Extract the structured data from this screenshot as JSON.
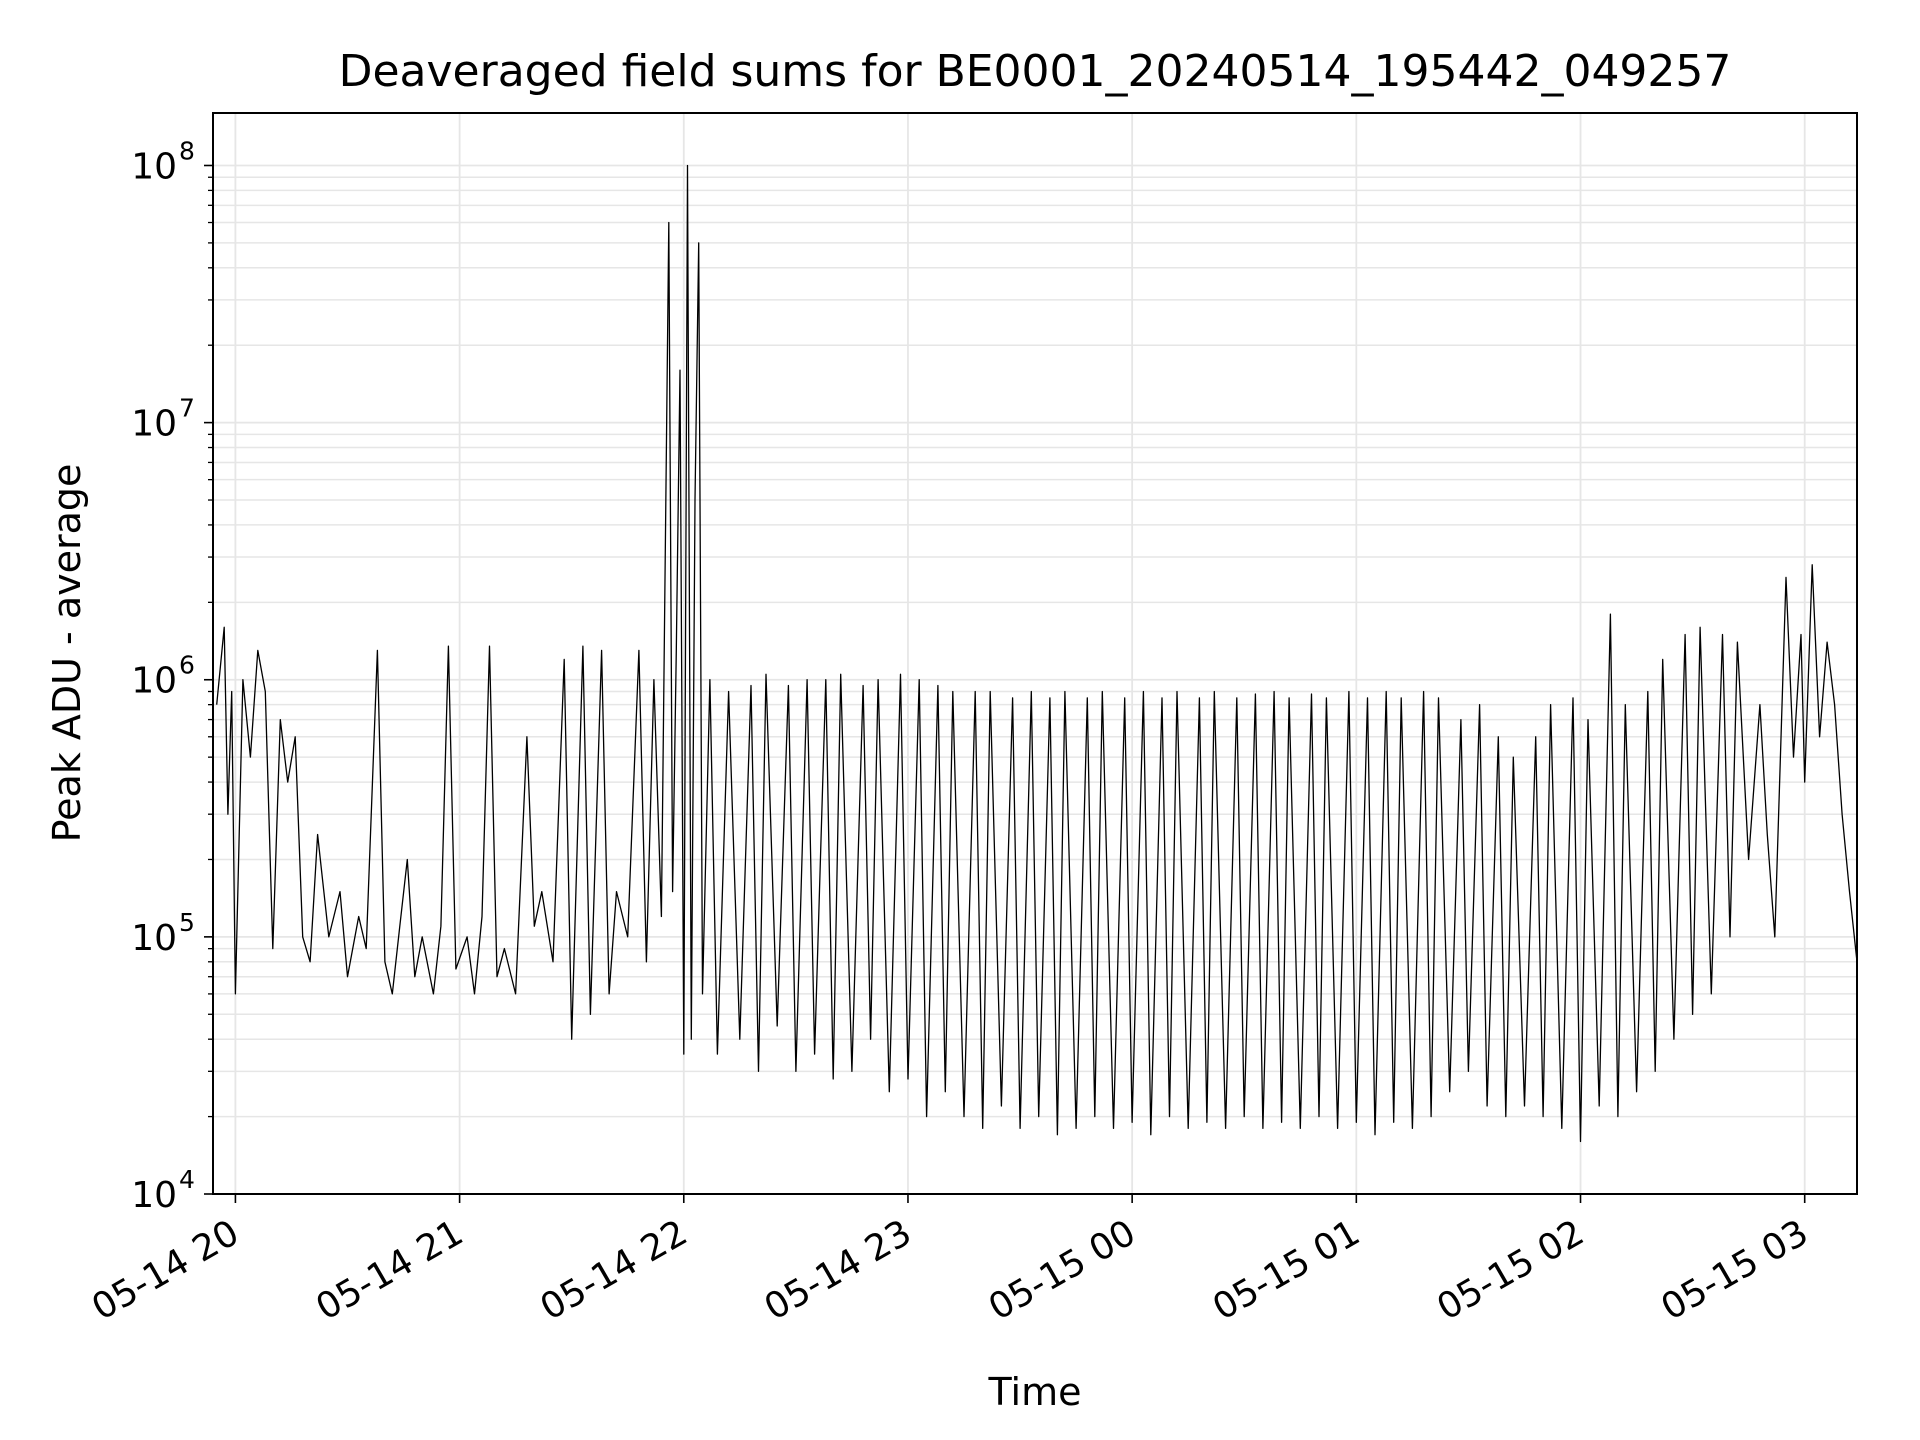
{
  "chart_data": {
    "type": "line",
    "title": "Deaveraged field sums for BE0001_20240514_195442_049257",
    "xlabel": "Time",
    "ylabel": "Peak ADU - average",
    "yscale": "log",
    "ylim": [
      10000,
      160000000
    ],
    "xlim": [
      "2024-05-14T19:54:00",
      "2024-05-15T03:14:00"
    ],
    "grid": true,
    "line_color": "#000000",
    "grid_color": "#e6e6e6",
    "x_ticks": [
      {
        "t": "2024-05-14T20:00:00",
        "label": "05-14 20"
      },
      {
        "t": "2024-05-14T21:00:00",
        "label": "05-14 21"
      },
      {
        "t": "2024-05-14T22:00:00",
        "label": "05-14 22"
      },
      {
        "t": "2024-05-14T23:00:00",
        "label": "05-14 23"
      },
      {
        "t": "2024-05-15T00:00:00",
        "label": "05-15 00"
      },
      {
        "t": "2024-05-15T01:00:00",
        "label": "05-15 01"
      },
      {
        "t": "2024-05-15T02:00:00",
        "label": "05-15 02"
      },
      {
        "t": "2024-05-15T03:00:00",
        "label": "05-15 03"
      }
    ],
    "y_ticks": [
      {
        "value": 10000,
        "base": "10",
        "exp": "4"
      },
      {
        "value": 100000,
        "base": "10",
        "exp": "5"
      },
      {
        "value": 1000000,
        "base": "10",
        "exp": "6"
      },
      {
        "value": 10000000,
        "base": "10",
        "exp": "7"
      },
      {
        "value": 100000000,
        "base": "10",
        "exp": "8"
      }
    ],
    "series": [
      {
        "x": [
          "2024-05-14T19:55:00",
          "2024-05-14T19:57:00",
          "2024-05-14T19:58:00",
          "2024-05-14T19:59:00",
          "2024-05-14T20:00:00",
          "2024-05-14T20:02:00",
          "2024-05-14T20:04:00",
          "2024-05-14T20:06:00",
          "2024-05-14T20:08:00",
          "2024-05-14T20:10:00",
          "2024-05-14T20:12:00",
          "2024-05-14T20:14:00",
          "2024-05-14T20:16:00",
          "2024-05-14T20:18:00",
          "2024-05-14T20:20:00",
          "2024-05-14T20:22:00",
          "2024-05-14T20:25:00",
          "2024-05-14T20:28:00",
          "2024-05-14T20:30:00",
          "2024-05-14T20:33:00",
          "2024-05-14T20:35:00",
          "2024-05-14T20:38:00",
          "2024-05-14T20:40:00",
          "2024-05-14T20:42:00",
          "2024-05-14T20:44:00",
          "2024-05-14T20:46:00",
          "2024-05-14T20:48:00",
          "2024-05-14T20:50:00",
          "2024-05-14T20:53:00",
          "2024-05-14T20:55:00",
          "2024-05-14T20:57:00",
          "2024-05-14T20:59:00",
          "2024-05-14T21:02:00",
          "2024-05-14T21:04:00",
          "2024-05-14T21:06:00",
          "2024-05-14T21:08:00",
          "2024-05-14T21:10:00",
          "2024-05-14T21:12:00",
          "2024-05-14T21:15:00",
          "2024-05-14T21:18:00",
          "2024-05-14T21:20:00",
          "2024-05-14T21:22:00",
          "2024-05-14T21:25:00",
          "2024-05-14T21:28:00",
          "2024-05-14T21:30:00",
          "2024-05-14T21:33:00",
          "2024-05-14T21:35:00",
          "2024-05-14T21:38:00",
          "2024-05-14T21:40:00",
          "2024-05-14T21:42:00",
          "2024-05-14T21:45:00",
          "2024-05-14T21:48:00",
          "2024-05-14T21:50:00",
          "2024-05-14T21:52:00",
          "2024-05-14T21:54:00",
          "2024-05-14T21:56:00",
          "2024-05-14T21:57:00",
          "2024-05-14T21:58:00",
          "2024-05-14T21:59:00",
          "2024-05-14T22:00:00",
          "2024-05-14T22:01:00",
          "2024-05-14T22:02:00",
          "2024-05-14T22:03:00",
          "2024-05-14T22:04:00",
          "2024-05-14T22:05:00",
          "2024-05-14T22:07:00",
          "2024-05-14T22:09:00",
          "2024-05-14T22:12:00",
          "2024-05-14T22:15:00",
          "2024-05-14T22:18:00",
          "2024-05-14T22:20:00",
          "2024-05-14T22:22:00",
          "2024-05-14T22:25:00",
          "2024-05-14T22:28:00",
          "2024-05-14T22:30:00",
          "2024-05-14T22:33:00",
          "2024-05-14T22:35:00",
          "2024-05-14T22:38:00",
          "2024-05-14T22:40:00",
          "2024-05-14T22:42:00",
          "2024-05-14T22:45:00",
          "2024-05-14T22:48:00",
          "2024-05-14T22:50:00",
          "2024-05-14T22:52:00",
          "2024-05-14T22:55:00",
          "2024-05-14T22:58:00",
          "2024-05-14T23:00:00",
          "2024-05-14T23:03:00",
          "2024-05-14T23:05:00",
          "2024-05-14T23:08:00",
          "2024-05-14T23:10:00",
          "2024-05-14T23:12:00",
          "2024-05-14T23:15:00",
          "2024-05-14T23:18:00",
          "2024-05-14T23:20:00",
          "2024-05-14T23:22:00",
          "2024-05-14T23:25:00",
          "2024-05-14T23:28:00",
          "2024-05-14T23:30:00",
          "2024-05-14T23:33:00",
          "2024-05-14T23:35:00",
          "2024-05-14T23:38:00",
          "2024-05-14T23:40:00",
          "2024-05-14T23:42:00",
          "2024-05-14T23:45:00",
          "2024-05-14T23:48:00",
          "2024-05-14T23:50:00",
          "2024-05-14T23:52:00",
          "2024-05-14T23:55:00",
          "2024-05-14T23:58:00",
          "2024-05-15T00:00:00",
          "2024-05-15T00:03:00",
          "2024-05-15T00:05:00",
          "2024-05-15T00:08:00",
          "2024-05-15T00:10:00",
          "2024-05-15T00:12:00",
          "2024-05-15T00:15:00",
          "2024-05-15T00:18:00",
          "2024-05-15T00:20:00",
          "2024-05-15T00:22:00",
          "2024-05-15T00:25:00",
          "2024-05-15T00:28:00",
          "2024-05-15T00:30:00",
          "2024-05-15T00:33:00",
          "2024-05-15T00:35:00",
          "2024-05-15T00:38:00",
          "2024-05-15T00:40:00",
          "2024-05-15T00:42:00",
          "2024-05-15T00:45:00",
          "2024-05-15T00:48:00",
          "2024-05-15T00:50:00",
          "2024-05-15T00:52:00",
          "2024-05-15T00:55:00",
          "2024-05-15T00:58:00",
          "2024-05-15T01:00:00",
          "2024-05-15T01:03:00",
          "2024-05-15T01:05:00",
          "2024-05-15T01:08:00",
          "2024-05-15T01:10:00",
          "2024-05-15T01:12:00",
          "2024-05-15T01:15:00",
          "2024-05-15T01:18:00",
          "2024-05-15T01:20:00",
          "2024-05-15T01:22:00",
          "2024-05-15T01:25:00",
          "2024-05-15T01:28:00",
          "2024-05-15T01:30:00",
          "2024-05-15T01:33:00",
          "2024-05-15T01:35:00",
          "2024-05-15T01:38:00",
          "2024-05-15T01:40:00",
          "2024-05-15T01:42:00",
          "2024-05-15T01:45:00",
          "2024-05-15T01:48:00",
          "2024-05-15T01:50:00",
          "2024-05-15T01:52:00",
          "2024-05-15T01:55:00",
          "2024-05-15T01:58:00",
          "2024-05-15T02:00:00",
          "2024-05-15T02:02:00",
          "2024-05-15T02:05:00",
          "2024-05-15T02:08:00",
          "2024-05-15T02:10:00",
          "2024-05-15T02:12:00",
          "2024-05-15T02:15:00",
          "2024-05-15T02:18:00",
          "2024-05-15T02:20:00",
          "2024-05-15T02:22:00",
          "2024-05-15T02:25:00",
          "2024-05-15T02:28:00",
          "2024-05-15T02:30:00",
          "2024-05-15T02:32:00",
          "2024-05-15T02:35:00",
          "2024-05-15T02:38:00",
          "2024-05-15T02:40:00",
          "2024-05-15T02:42:00",
          "2024-05-15T02:45:00",
          "2024-05-15T02:48:00",
          "2024-05-15T02:50:00",
          "2024-05-15T02:52:00",
          "2024-05-15T02:55:00",
          "2024-05-15T02:57:00",
          "2024-05-15T02:59:00",
          "2024-05-15T03:00:00",
          "2024-05-15T03:02:00",
          "2024-05-15T03:04:00",
          "2024-05-15T03:06:00",
          "2024-05-15T03:08:00",
          "2024-05-15T03:10:00",
          "2024-05-15T03:12:00",
          "2024-05-15T03:14:00"
        ],
        "y": [
          800000,
          1600000,
          300000,
          900000,
          60000,
          1000000,
          500000,
          1300000,
          900000,
          90000,
          700000,
          400000,
          600000,
          100000,
          80000,
          250000,
          100000,
          150000,
          70000,
          120000,
          90000,
          1300000,
          80000,
          60000,
          110000,
          200000,
          70000,
          100000,
          60000,
          110000,
          1350000,
          75000,
          100000,
          60000,
          120000,
          1350000,
          70000,
          90000,
          60000,
          600000,
          110000,
          150000,
          80000,
          1200000,
          40000,
          1350000,
          50000,
          1300000,
          60000,
          150000,
          100000,
          1300000,
          80000,
          1000000,
          120000,
          60000000,
          150000,
          1300000,
          16000000,
          35000,
          100000000,
          40000,
          5000000,
          50000000,
          60000,
          1000000,
          35000,
          900000,
          40000,
          950000,
          30000,
          1050000,
          45000,
          950000,
          30000,
          1000000,
          35000,
          1000000,
          28000,
          1050000,
          30000,
          950000,
          40000,
          1000000,
          25000,
          1050000,
          28000,
          1000000,
          20000,
          950000,
          25000,
          900000,
          20000,
          900000,
          18000,
          900000,
          22000,
          850000,
          18000,
          900000,
          20000,
          850000,
          17000,
          900000,
          18000,
          850000,
          20000,
          900000,
          18000,
          850000,
          19000,
          900000,
          17000,
          850000,
          20000,
          900000,
          18000,
          850000,
          19000,
          900000,
          18000,
          850000,
          20000,
          880000,
          18000,
          900000,
          19000,
          850000,
          18000,
          880000,
          20000,
          850000,
          18000,
          900000,
          19000,
          850000,
          17000,
          900000,
          19000,
          850000,
          18000,
          900000,
          20000,
          850000,
          25000,
          700000,
          30000,
          800000,
          22000,
          600000,
          20000,
          500000,
          22000,
          600000,
          20000,
          800000,
          18000,
          850000,
          16000,
          700000,
          22000,
          1800000,
          20000,
          800000,
          25000,
          900000,
          30000,
          1200000,
          40000,
          1500000,
          50000,
          1600000,
          60000,
          1500000,
          100000,
          1400000,
          200000,
          800000,
          250000,
          100000,
          2500000,
          500000,
          1500000,
          400000,
          2800000,
          600000,
          1400000,
          800000,
          300000,
          150000,
          80000
        ]
      }
    ]
  }
}
